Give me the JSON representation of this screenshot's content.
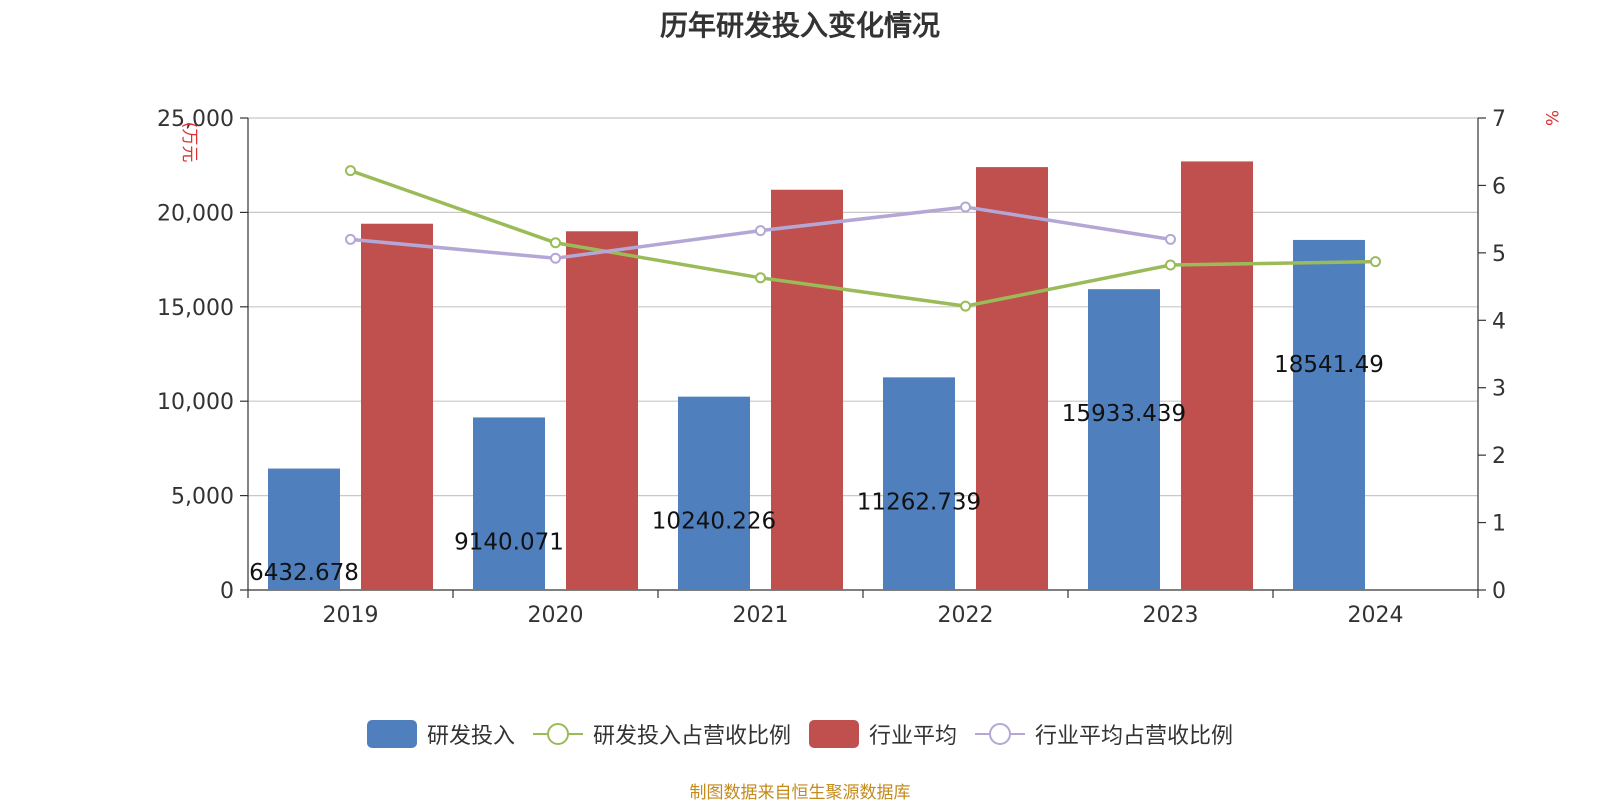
{
  "chart_data": {
    "type": "bar",
    "title": "历年研发投入变化情况",
    "categories": [
      "2019",
      "2020",
      "2021",
      "2022",
      "2023",
      "2024"
    ],
    "y_left": {
      "label": "(万元",
      "ticks": [
        "0",
        "5,000",
        "10,000",
        "15,000",
        "20,000",
        "25,000"
      ],
      "range": [
        0,
        25000
      ]
    },
    "y_right": {
      "label": "%",
      "ticks": [
        "0",
        "1",
        "2",
        "3",
        "4",
        "5",
        "6",
        "7"
      ],
      "range": [
        0,
        7
      ]
    },
    "series": [
      {
        "name": "研发投入",
        "kind": "bar",
        "axis": "left",
        "color": "#4f7fbd",
        "values": [
          6432.678,
          9140.071,
          10240.226,
          11262.739,
          15933.439,
          18541.49
        ],
        "labels": [
          "6432.678",
          "9140.071",
          "10240.226",
          "11262.739",
          "15933.439",
          "18541.49"
        ]
      },
      {
        "name": "研发投入占营收比例",
        "kind": "line",
        "axis": "right",
        "color": "#9bbb59",
        "values": [
          6.22,
          5.15,
          4.63,
          4.21,
          4.82,
          4.87
        ]
      },
      {
        "name": "行业平均",
        "kind": "bar",
        "axis": "left",
        "color": "#c0504d",
        "values": [
          19400,
          19000,
          21200,
          22400,
          22700,
          null
        ]
      },
      {
        "name": "行业平均占营收比例",
        "kind": "line",
        "axis": "right",
        "color": "#b4a7d6",
        "values": [
          5.2,
          4.92,
          5.33,
          5.68,
          5.2,
          null
        ]
      }
    ],
    "grid": true,
    "legend": "bottom"
  },
  "source_note": "制图数据来自恒生聚源数据库"
}
